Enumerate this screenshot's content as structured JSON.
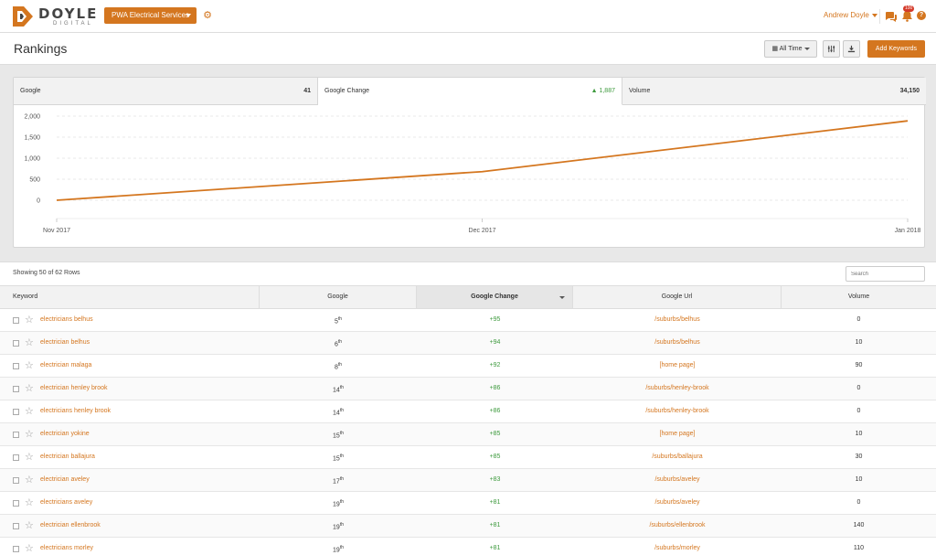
{
  "brand": {
    "name": "DOYLE",
    "sub": "DIGITAL"
  },
  "client": {
    "label": "PWA Electrical Services"
  },
  "user": {
    "name": "Andrew Doyle",
    "notifications": "100"
  },
  "page": {
    "title": "Rankings"
  },
  "toolbar": {
    "range_label": "All Time",
    "add_label": "Add Keywords"
  },
  "metrics": [
    {
      "label": "Google",
      "value": "41"
    },
    {
      "label": "Google Change",
      "value": "1,887"
    },
    {
      "label": "Volume",
      "value": "34,150"
    }
  ],
  "chart_data": {
    "type": "line",
    "title": "",
    "xlabel": "",
    "ylabel": "",
    "x": [
      "Nov 2017",
      "Dec 2017",
      "Jan 2018"
    ],
    "series": [
      {
        "values": [
          0,
          680,
          1887
        ]
      }
    ],
    "yticks": [
      "2,000",
      "1,500",
      "1,000",
      "500",
      "0"
    ],
    "ylim": [
      0,
      2000
    ],
    "grid": true,
    "color": "#d4761f"
  },
  "table": {
    "rows_info": "Showing 50 of 62 Rows",
    "search_placeholder": "Search",
    "columns": [
      "Keyword",
      "Google",
      "Google Change",
      "Google Url",
      "Volume"
    ],
    "rows": [
      {
        "keyword": "electricians belhus",
        "rank": "5",
        "suffix": "th",
        "change": "+95",
        "url": "/suburbs/belhus",
        "volume": "0"
      },
      {
        "keyword": "electrician belhus",
        "rank": "6",
        "suffix": "th",
        "change": "+94",
        "url": "/suburbs/belhus",
        "volume": "10"
      },
      {
        "keyword": "electrician malaga",
        "rank": "8",
        "suffix": "th",
        "change": "+92",
        "url": "[home page]",
        "volume": "90"
      },
      {
        "keyword": "electrician henley brook",
        "rank": "14",
        "suffix": "th",
        "change": "+86",
        "url": "/suburbs/henley-brook",
        "volume": "0"
      },
      {
        "keyword": "electricians henley brook",
        "rank": "14",
        "suffix": "th",
        "change": "+86",
        "url": "/suburbs/henley-brook",
        "volume": "0"
      },
      {
        "keyword": "electrician yokine",
        "rank": "15",
        "suffix": "th",
        "change": "+85",
        "url": "[home page]",
        "volume": "10"
      },
      {
        "keyword": "electrician ballajura",
        "rank": "15",
        "suffix": "th",
        "change": "+85",
        "url": "/suburbs/ballajura",
        "volume": "30"
      },
      {
        "keyword": "electrician aveley",
        "rank": "17",
        "suffix": "th",
        "change": "+83",
        "url": "/suburbs/aveley",
        "volume": "10"
      },
      {
        "keyword": "electricians aveley",
        "rank": "19",
        "suffix": "th",
        "change": "+81",
        "url": "/suburbs/aveley",
        "volume": "0"
      },
      {
        "keyword": "electrician ellenbrook",
        "rank": "19",
        "suffix": "th",
        "change": "+81",
        "url": "/suburbs/ellenbrook",
        "volume": "140"
      },
      {
        "keyword": "electricians morley",
        "rank": "19",
        "suffix": "th",
        "change": "+81",
        "url": "/suburbs/morley",
        "volume": "110"
      }
    ]
  }
}
